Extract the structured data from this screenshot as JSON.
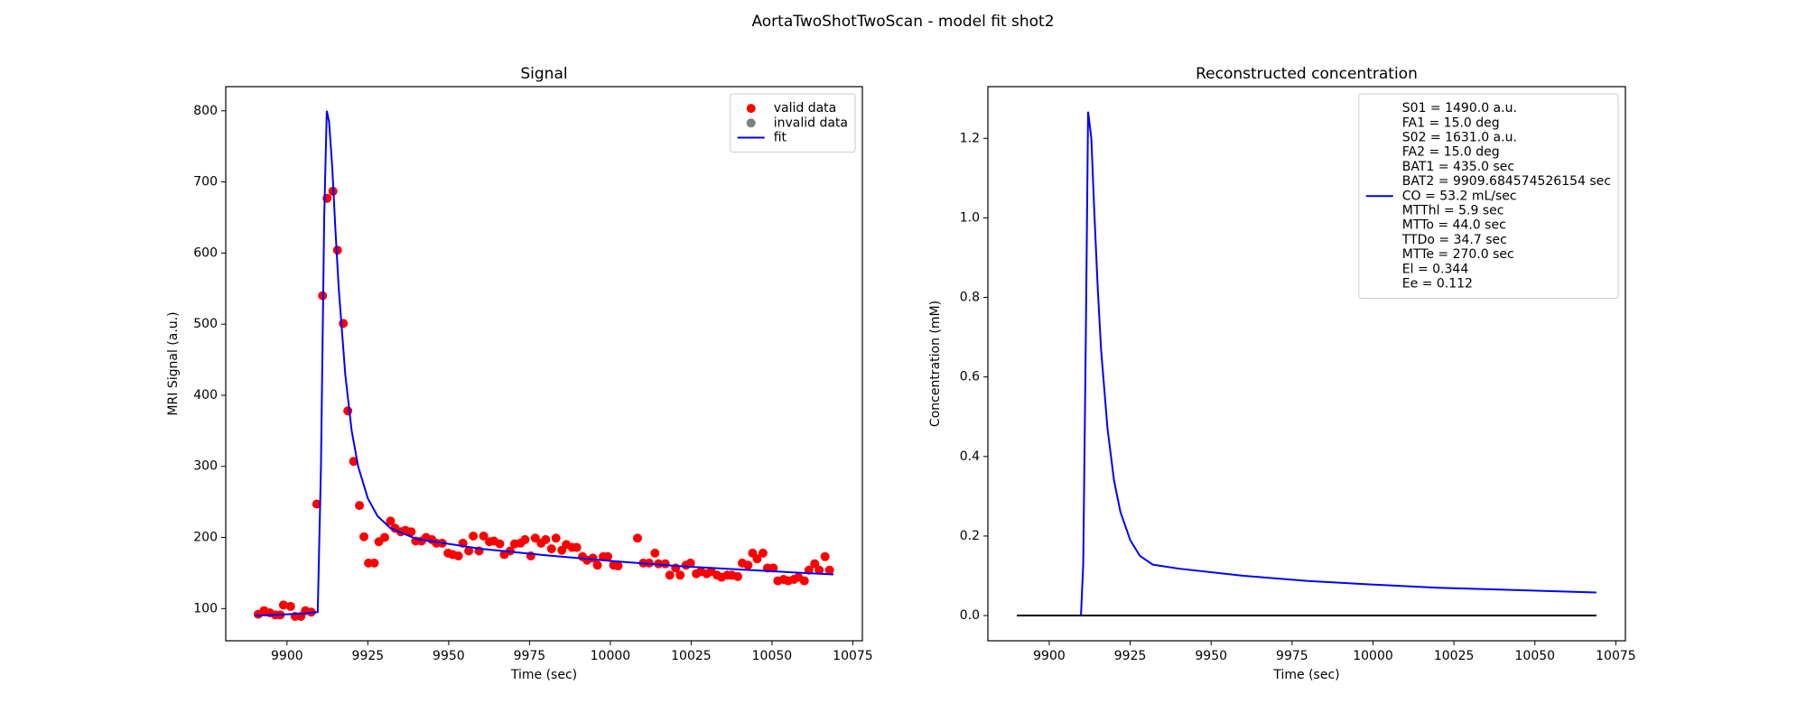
{
  "title": "AortaTwoShotTwoScan - model fit shot2",
  "chart_data": [
    {
      "type": "line",
      "title": "Signal",
      "xlabel": "Time (sec)",
      "ylabel": "MRI Signal (a.u.)",
      "xlim": [
        9881.05,
        10077.95
      ],
      "ylim": [
        54.7,
        834
      ],
      "xticks": [
        9900,
        9925,
        9950,
        9975,
        10000,
        10025,
        10050,
        10075
      ],
      "yticks": [
        100,
        200,
        300,
        400,
        500,
        600,
        700,
        800
      ],
      "grid": false,
      "legend": "upper right",
      "series": [
        {
          "name": "valid data",
          "type": "scatter",
          "color": "#ff0000",
          "x": [
            9891.1,
            9892.9,
            9894.7,
            9896.4,
            9897.9,
            9898.9,
            9901.1,
            9902.5,
            9904.3,
            9905.7,
            9907.5,
            9909.2,
            9911.0,
            9912.4,
            9914.2,
            9915.6,
            9917.4,
            9918.8,
            9920.6,
            9922.4,
            9923.8,
            9925.2,
            9927.0,
            9928.4,
            9930.2,
            9932.0,
            9933.4,
            9935.2,
            9936.6,
            9938.4,
            9939.8,
            9941.6,
            9943.0,
            9944.8,
            9946.2,
            9948.0,
            9949.8,
            9951.2,
            9953.0,
            9954.4,
            9956.2,
            9957.6,
            9959.4,
            9960.8,
            9962.6,
            9964.0,
            9965.8,
            9967.2,
            9969.0,
            9970.4,
            9972.2,
            9973.6,
            9975.4,
            9976.8,
            9978.6,
            9980.0,
            9981.8,
            9983.2,
            9985.0,
            9986.4,
            9988.2,
            9989.6,
            9991.4,
            9992.8,
            9994.6,
            9996.0,
            9997.8,
            9999.2,
            10001.0,
            10002.4,
            10008.4,
            10010.2,
            10012.0,
            10013.8,
            10014.9,
            10017.0,
            10018.4,
            10020.2,
            10021.6,
            10023.4,
            10024.8,
            10026.6,
            10028.0,
            10029.8,
            10031.2,
            10033.0,
            10034.4,
            10036.2,
            10037.6,
            10039.4,
            10040.8,
            10042.6,
            10044.0,
            10045.4,
            10047.2,
            10048.6,
            10050.4,
            10051.8,
            10053.6,
            10055.0,
            10056.8,
            10058.2,
            10060.0,
            10061.4,
            10063.2,
            10064.6,
            10066.4,
            10067.8
          ],
          "values": [
            92,
            97,
            94,
            91,
            91,
            105,
            103,
            89,
            89,
            97,
            95,
            247,
            540,
            677,
            687,
            604,
            501,
            378,
            307,
            245,
            201,
            164,
            164,
            194,
            200,
            223,
            213,
            208,
            210,
            208,
            195,
            195,
            200,
            197,
            192,
            192,
            178,
            176,
            174,
            192,
            181,
            202,
            181,
            202,
            194,
            195,
            191,
            176,
            181,
            191,
            192,
            197,
            174,
            199,
            192,
            197,
            184,
            199,
            182,
            190,
            186,
            186,
            173,
            168,
            171,
            161,
            173,
            173,
            161,
            160,
            199,
            164,
            164,
            178,
            163,
            163,
            147,
            157,
            147,
            161,
            164,
            149,
            152,
            149,
            152,
            147,
            144,
            147,
            147,
            145,
            164,
            161,
            178,
            170,
            178,
            157,
            157,
            139,
            141,
            139,
            141,
            144,
            139,
            154,
            163,
            154,
            173,
            154
          ]
        },
        {
          "name": "invalid data",
          "type": "scatter",
          "color": "#808080",
          "x": [],
          "values": []
        },
        {
          "name": "fit",
          "type": "line",
          "color": "#0000ff",
          "x": [
            9890,
            9905,
            9909.5,
            9910.5,
            9911.5,
            9912.3,
            9913,
            9914,
            9915,
            9916,
            9918,
            9920,
            9922,
            9925,
            9928,
            9932,
            9940,
            9960,
            9980,
            10000,
            10020,
            10040,
            10060,
            10069
          ],
          "values": [
            90,
            93,
            95,
            300,
            650,
            800,
            785,
            720,
            630,
            550,
            430,
            350,
            300,
            255,
            230,
            213,
            198,
            184,
            175,
            167,
            160,
            155,
            150,
            148
          ]
        }
      ]
    },
    {
      "type": "line",
      "title": "Reconstructed concentration",
      "xlabel": "Time (sec)",
      "ylabel": "Concentration (mM)",
      "xlim": [
        9881.05,
        10077.95
      ],
      "ylim": [
        -0.0634,
        1.33
      ],
      "xticks": [
        9900,
        9925,
        9950,
        9975,
        10000,
        10025,
        10050,
        10075
      ],
      "yticks": [
        {
          "value": 0,
          "label": "0.0"
        },
        0.2,
        0.4,
        0.6,
        0.8,
        {
          "value": 1,
          "label": "1.0"
        },
        1.2
      ],
      "grid": false,
      "legend": "upper right",
      "series": [
        {
          "name": [
            "S01 = 1490.0 a.u.",
            "FA1 = 15.0 deg",
            "S02 = 1631.0 a.u.",
            "FA2 = 15.0 deg",
            "BAT1 = 435.0 sec",
            "BAT2 = 9909.684574526154 sec",
            "CO = 53.2 mL/sec",
            "MTThl = 5.9 sec",
            "MTTo = 44.0 sec",
            "TTDo = 34.7 sec",
            "MTTe = 270.0 sec",
            "El = 0.344",
            "Ee = 0.112"
          ],
          "type": "line",
          "color": "#0000ff",
          "x": [
            9890,
            9909.8,
            9910.5,
            9911.3,
            9912,
            9913,
            9914,
            9915,
            9916,
            9918,
            9920,
            9922,
            9925,
            9928,
            9932,
            9940,
            9960,
            9980,
            10000,
            10020,
            10040,
            10069
          ],
          "values": [
            0,
            0,
            0.13,
            0.7,
            1.267,
            1.2,
            1.0,
            0.82,
            0.67,
            0.47,
            0.34,
            0.26,
            0.19,
            0.15,
            0.128,
            0.118,
            0.1,
            0.087,
            0.078,
            0.07,
            0.065,
            0.058
          ]
        },
        {
          "type": "line",
          "color": "#000000",
          "x": [
            9890,
            10069
          ],
          "values": [
            0,
            0
          ]
        }
      ]
    }
  ]
}
